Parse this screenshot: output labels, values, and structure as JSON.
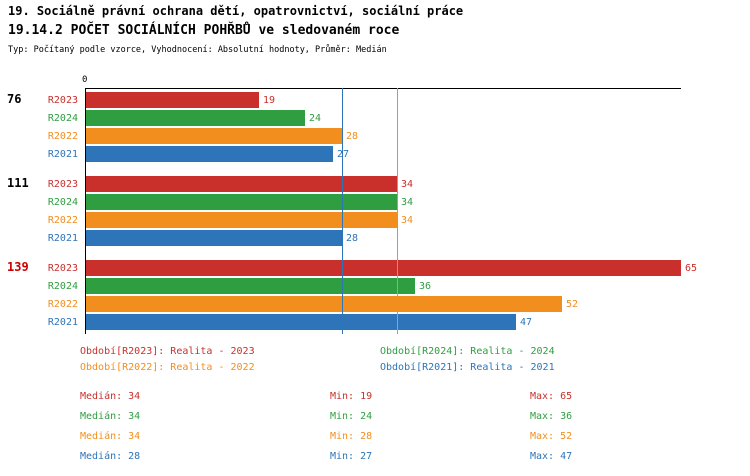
{
  "header": {
    "title_line1": "19. Sociálně právní ochrana dětí, opatrovnictví, sociální práce",
    "title_line2": "19.14.2 POČET SOCIÁLNÍCH POHŘBŮ ve sledovaném roce",
    "subtitle": "Typ: Počítaný podle vzorce, Vyhodnocení: Absolutní hodnoty, Průměr: Medián"
  },
  "colors": {
    "r2023": "#c9302c",
    "r2024": "#2f9e41",
    "r2022": "#f28e1e",
    "r2021": "#2e74b8",
    "axis": "#000000",
    "text": "#000000",
    "highlight": "#cc0000"
  },
  "chart_data": {
    "type": "bar",
    "orientation": "horizontal",
    "title": "19.14.2 POČET SOCIÁLNÍCH POHŘBŮ ve sledovaném roce",
    "x_axis": {
      "origin_label": "0",
      "min": 0,
      "max": 65
    },
    "grid": false,
    "legend_position": "bottom",
    "series_labels": [
      "R2023",
      "R2024",
      "R2022",
      "R2021"
    ],
    "series_keys": [
      "r2023",
      "r2024",
      "r2022",
      "r2021"
    ],
    "groups": [
      {
        "label": "76",
        "highlight": false,
        "values": [
          19,
          24,
          28,
          27
        ]
      },
      {
        "label": "111",
        "highlight": false,
        "values": [
          34,
          34,
          34,
          28
        ]
      },
      {
        "label": "139",
        "highlight": true,
        "values": [
          65,
          36,
          52,
          47
        ]
      }
    ],
    "median_lines": [
      {
        "value": 34,
        "color_key": "r2022"
      },
      {
        "value": 28,
        "color_key": "r2021"
      }
    ]
  },
  "legend": {
    "items": [
      {
        "key": "r2023",
        "label": "Období[R2023]: Realita - 2023"
      },
      {
        "key": "r2024",
        "label": "Období[R2024]: Realita - 2024"
      },
      {
        "key": "r2022",
        "label": "Období[R2022]: Realita - 2022"
      },
      {
        "key": "r2021",
        "label": "Období[R2021]: Realita - 2021"
      }
    ]
  },
  "stats": {
    "rows": [
      {
        "key": "r2023",
        "median": "Medián: 34",
        "min": "Min: 19",
        "max": "Max: 65"
      },
      {
        "key": "r2024",
        "median": "Medián: 34",
        "min": "Min: 24",
        "max": "Max: 36"
      },
      {
        "key": "r2022",
        "median": "Medián: 34",
        "min": "Min: 28",
        "max": "Max: 52"
      },
      {
        "key": "r2021",
        "median": "Medián: 28",
        "min": "Min: 27",
        "max": "Max: 47"
      }
    ]
  }
}
